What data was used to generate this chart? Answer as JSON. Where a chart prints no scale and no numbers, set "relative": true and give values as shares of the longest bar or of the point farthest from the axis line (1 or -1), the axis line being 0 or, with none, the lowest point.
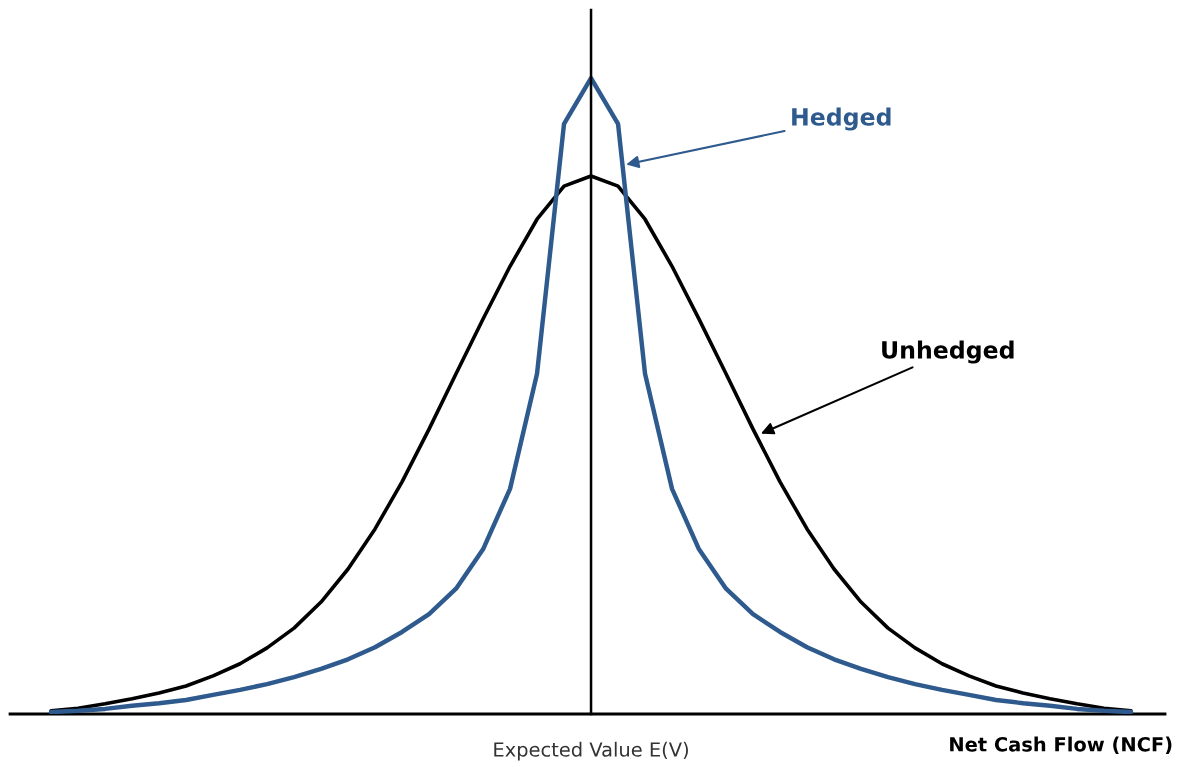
{
  "chart_data": {
    "type": "line",
    "relative": true,
    "xlabel": "Net Cash Flow (NCF)",
    "categories": [
      null,
      null,
      null,
      null,
      null,
      null,
      null,
      null,
      null,
      null,
      null,
      null,
      null,
      null,
      null,
      null,
      null,
      null,
      null,
      null,
      null,
      null,
      null,
      null,
      null,
      null,
      null,
      null,
      null,
      null,
      null,
      null,
      null,
      null,
      null,
      null,
      null,
      null,
      null,
      null,
      null
    ],
    "series": [
      {
        "name": "Hedged",
        "color": "#2e5a8e",
        "values": [
          0.003,
          0.005,
          0.008,
          0.013,
          0.017,
          0.022,
          0.03,
          0.038,
          0.047,
          0.058,
          0.071,
          0.086,
          0.105,
          0.129,
          0.157,
          0.197,
          0.259,
          0.354,
          0.535,
          0.928,
          1,
          0.928,
          0.535,
          0.354,
          0.259,
          0.197,
          0.157,
          0.129,
          0.105,
          0.086,
          0.071,
          0.058,
          0.047,
          0.038,
          0.03,
          0.022,
          0.017,
          0.013,
          0.008,
          0.005,
          0.003
        ]
      },
      {
        "name": "Unhedged",
        "color": "#000000",
        "values": [
          0.005,
          0.009,
          0.016,
          0.024,
          0.033,
          0.044,
          0.06,
          0.079,
          0.104,
          0.135,
          0.176,
          0.228,
          0.291,
          0.365,
          0.448,
          0.535,
          0.621,
          0.704,
          0.778,
          0.83,
          0.846,
          0.83,
          0.778,
          0.704,
          0.621,
          0.535,
          0.448,
          0.365,
          0.291,
          0.228,
          0.176,
          0.135,
          0.104,
          0.079,
          0.06,
          0.044,
          0.033,
          0.024,
          0.016,
          0.009,
          0.005
        ]
      }
    ],
    "annotations": [
      "Expected Value E(V)"
    ],
    "legend": false,
    "marker": "none",
    "line_style": "solid"
  }
}
